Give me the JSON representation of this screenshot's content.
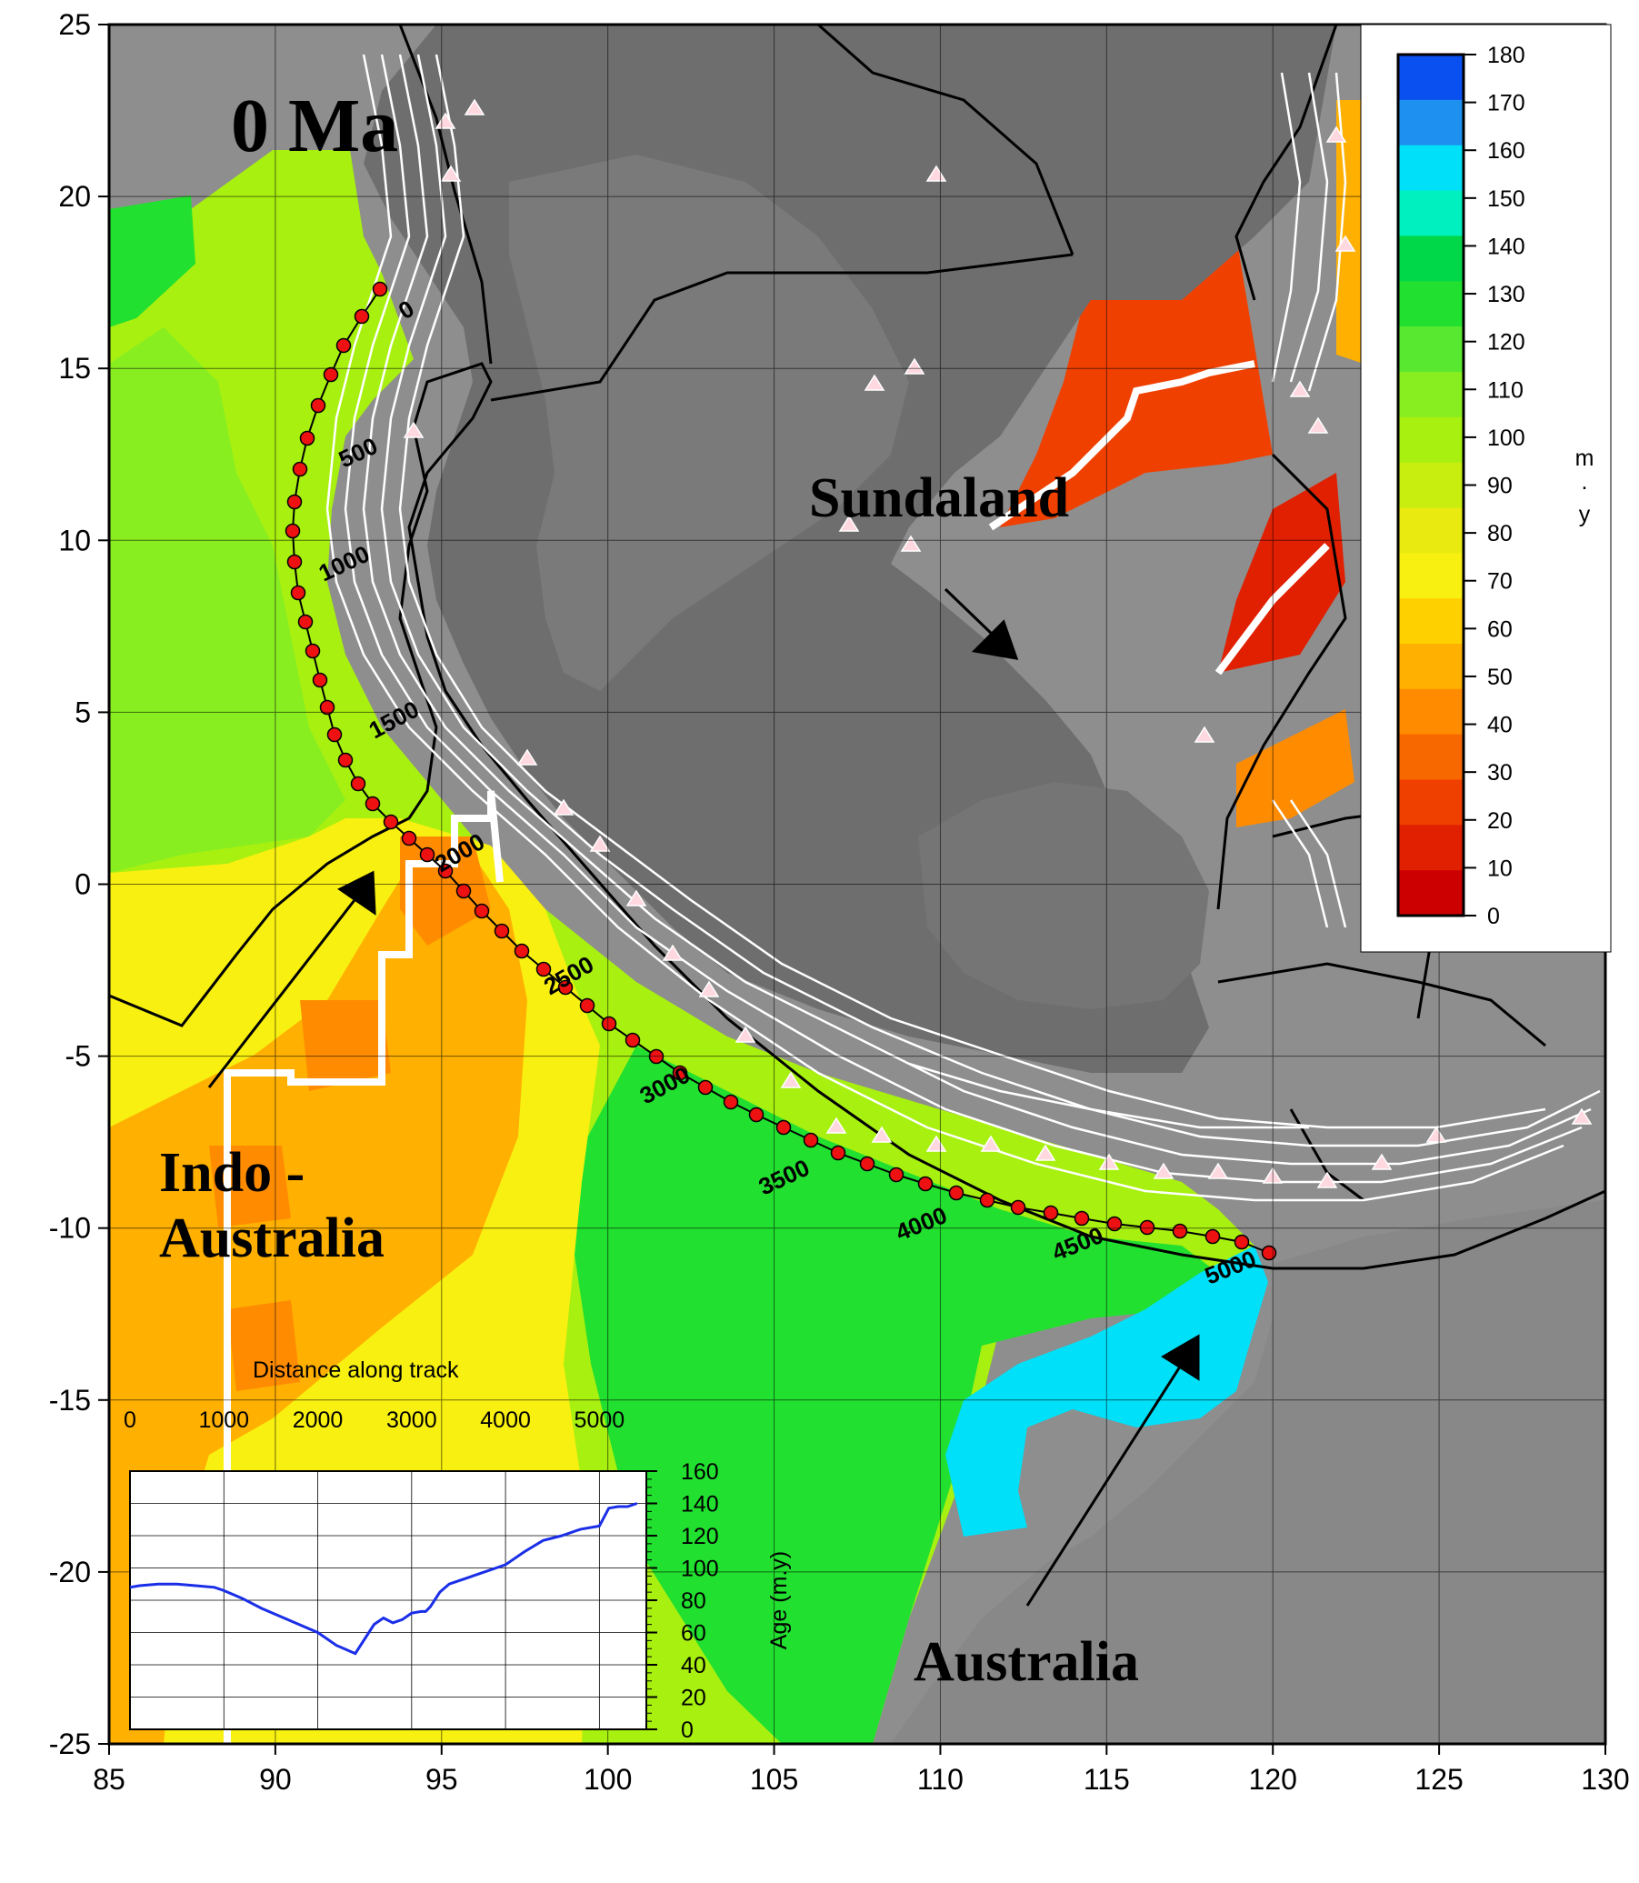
{
  "map": {
    "title": "0 Ma",
    "x_ticks": [
      "85",
      "90",
      "95",
      "100",
      "105",
      "110",
      "115",
      "120",
      "125",
      "130"
    ],
    "y_ticks": [
      "25",
      "20",
      "15",
      "10",
      "5",
      "0",
      "-5",
      "-10",
      "-15",
      "-20",
      "-25"
    ],
    "region_labels": {
      "sundaland": "Sundaland",
      "indo_line1": "Indo -",
      "indo_line2": "Australia",
      "australia": "Australia"
    },
    "track_labels": [
      "0",
      "500",
      "1000",
      "1500",
      "2000",
      "2500",
      "3000",
      "3500",
      "4000",
      "4500",
      "5000"
    ]
  },
  "colorbar": {
    "unit_lines": [
      "m",
      ".",
      "y"
    ],
    "ticks": [
      "180",
      "170",
      "160",
      "150",
      "140",
      "130",
      "120",
      "110",
      "100",
      "90",
      "80",
      "70",
      "60",
      "50",
      "40",
      "30",
      "20",
      "10",
      "0"
    ],
    "colors": [
      "#0a4ff0",
      "#1e90f0",
      "#00e0f8",
      "#00f0c0",
      "#00d84a",
      "#22e030",
      "#58e830",
      "#88ee20",
      "#a8f010",
      "#c8ee10",
      "#e8ea10",
      "#f8f010",
      "#ffd000",
      "#ffb000",
      "#ff8c00",
      "#f86800",
      "#f04000",
      "#e02000",
      "#cc0000"
    ]
  },
  "inset": {
    "title": "Distance along track",
    "x_ticks": [
      "0",
      "1000",
      "2000",
      "3000",
      "4000",
      "5000"
    ],
    "y_ticks": [
      "160",
      "140",
      "120",
      "100",
      "80",
      "60",
      "40",
      "20",
      "0"
    ],
    "ylabel": "Age (m.y)",
    "line_color": "#1a2ee8"
  },
  "chart_data": {
    "type": "line",
    "title": "",
    "xlabel": "Distance along track",
    "ylabel": "Age (m.y)",
    "xlim": [
      0,
      5500
    ],
    "ylim": [
      0,
      160
    ],
    "series": [
      {
        "x": [
          0,
          100,
          300,
          500,
          700,
          900,
          1000,
          1200,
          1400,
          1600,
          1800,
          2000,
          2200,
          2400,
          2600,
          2700,
          2800,
          2900,
          3000,
          3100,
          3150,
          3200,
          3300,
          3400,
          3500,
          3600,
          3700,
          3800,
          3900,
          4000,
          4200,
          4400,
          4600,
          4800,
          5000,
          5100,
          5200,
          5300,
          5400
        ],
        "y": [
          88,
          89,
          90,
          90,
          89,
          88,
          86,
          81,
          75,
          70,
          65,
          60,
          52,
          47,
          65,
          69,
          66,
          68,
          72,
          73,
          73,
          76,
          85,
          90,
          92,
          94,
          96,
          98,
          100,
          102,
          110,
          117,
          120,
          124,
          126,
          137,
          138,
          138,
          140
        ]
      }
    ]
  }
}
